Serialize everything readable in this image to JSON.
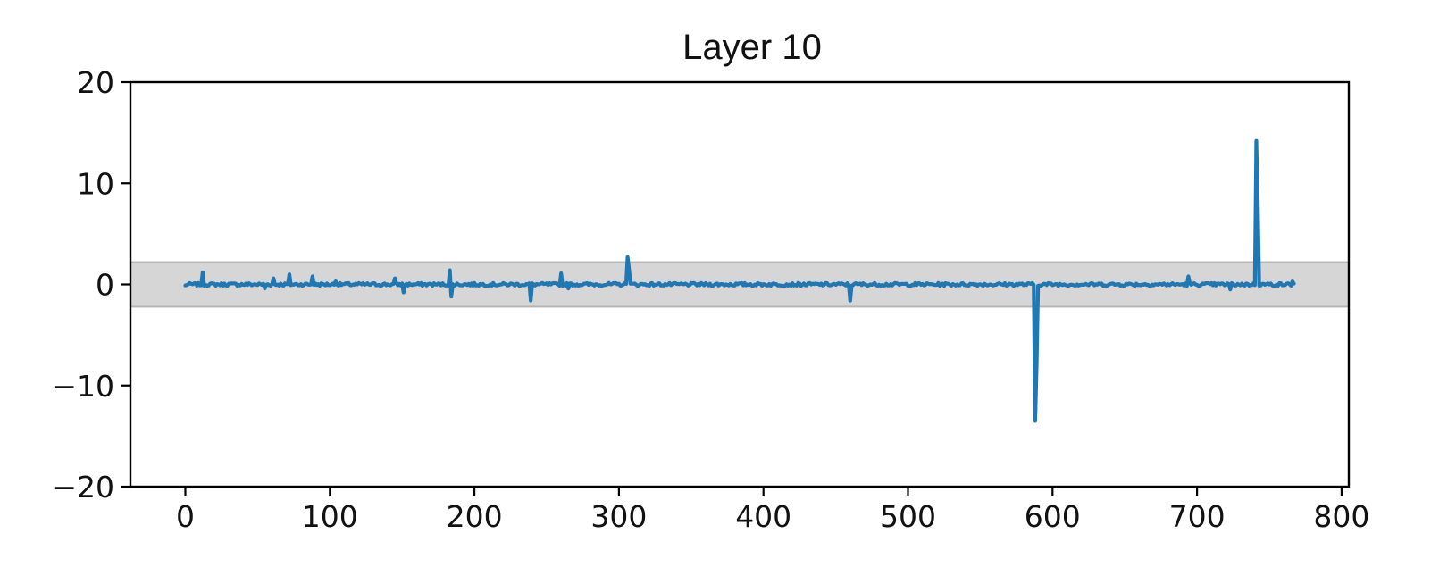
{
  "chart_data": {
    "type": "line",
    "title": "Layer 10",
    "xlabel": "",
    "ylabel": "",
    "xlim": [
      -38,
      805
    ],
    "ylim": [
      -20,
      20
    ],
    "x_ticks": [
      0,
      100,
      200,
      300,
      400,
      500,
      600,
      700,
      800
    ],
    "y_ticks": [
      20,
      10,
      0,
      -10,
      -20
    ],
    "y_tick_labels": [
      "20",
      "10",
      "0",
      "−10",
      "−20"
    ],
    "grid": false,
    "band": {
      "lower": -2.2,
      "upper": 2.2,
      "color": "#d6d6d6",
      "edge_color": "#b5b5b5"
    },
    "series": [
      {
        "color": "#1f77b4",
        "n_points": 768,
        "baseline_noise": 0.15,
        "spikes": [
          [
            12,
            1.2
          ],
          [
            55,
            -0.4
          ],
          [
            61,
            0.6
          ],
          [
            72,
            1.0
          ],
          [
            88,
            0.8
          ],
          [
            104,
            0.3
          ],
          [
            145,
            0.6
          ],
          [
            151,
            -0.8
          ],
          [
            183,
            1.4
          ],
          [
            184,
            -1.2
          ],
          [
            239,
            -1.6
          ],
          [
            260,
            1.1
          ],
          [
            265,
            -0.4
          ],
          [
            306,
            2.7
          ],
          [
            307,
            1.5
          ],
          [
            460,
            -1.6
          ],
          [
            588,
            -13.5
          ],
          [
            589,
            -8.0
          ],
          [
            694,
            0.8
          ],
          [
            723,
            -0.5
          ],
          [
            741,
            14.2
          ],
          [
            742,
            8.0
          ],
          [
            766,
            0.3
          ]
        ]
      }
    ]
  },
  "colors": {
    "line": "#1f77b4",
    "axes": "#000000",
    "band": "#d6d6d6"
  }
}
